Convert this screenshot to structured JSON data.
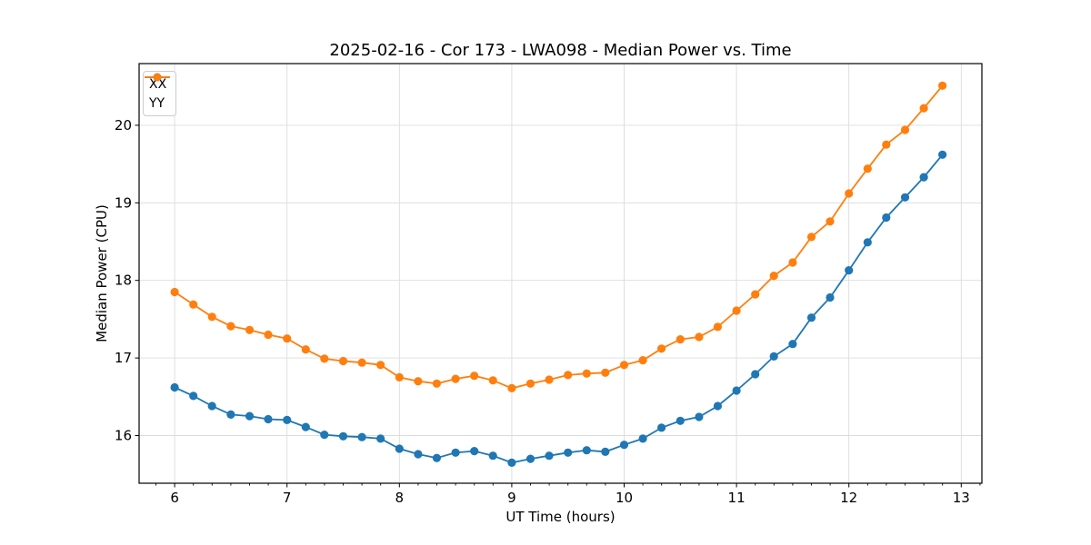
{
  "chart_data": {
    "type": "line",
    "title": "2025-02-16 - Cor 173 - LWA098 - Median Power vs. Time",
    "xlabel": "UT Time (hours)",
    "ylabel": "Median Power (CPU)",
    "xlim": [
      5.684,
      13.184
    ],
    "ylim": [
      15.385,
      20.795
    ],
    "xticks": [
      6,
      7,
      8,
      9,
      10,
      11,
      12,
      13
    ],
    "yticks": [
      16,
      17,
      18,
      19,
      20
    ],
    "x_minor_ticks_per_hour": 6,
    "grid": true,
    "grid_color": "#dcdcdc",
    "legend_position": "upper-left",
    "x": [
      6.0,
      6.167,
      6.333,
      6.5,
      6.667,
      6.833,
      7.0,
      7.167,
      7.333,
      7.5,
      7.667,
      7.833,
      8.0,
      8.167,
      8.333,
      8.5,
      8.667,
      8.833,
      9.0,
      9.167,
      9.333,
      9.5,
      9.667,
      9.833,
      10.0,
      10.167,
      10.333,
      10.5,
      10.667,
      10.833,
      11.0,
      11.167,
      11.333,
      11.5,
      11.667,
      11.833,
      12.0,
      12.167,
      12.333,
      12.5,
      12.667,
      12.833
    ],
    "series": [
      {
        "name": "XX",
        "color": "#1f77b4",
        "values": [
          16.62,
          16.51,
          16.38,
          16.27,
          16.25,
          16.21,
          16.2,
          16.11,
          16.01,
          15.99,
          15.98,
          15.96,
          15.83,
          15.76,
          15.71,
          15.78,
          15.8,
          15.74,
          15.65,
          15.7,
          15.74,
          15.78,
          15.81,
          15.79,
          15.88,
          15.96,
          16.1,
          16.19,
          16.24,
          16.38,
          16.58,
          16.79,
          17.02,
          17.18,
          17.52,
          17.78,
          18.13,
          18.49,
          18.81,
          19.07,
          19.33,
          19.62
        ]
      },
      {
        "name": "YY",
        "color": "#ff7f0e",
        "values": [
          17.85,
          17.69,
          17.53,
          17.41,
          17.36,
          17.3,
          17.25,
          17.11,
          16.99,
          16.96,
          16.94,
          16.91,
          16.75,
          16.7,
          16.67,
          16.73,
          16.77,
          16.71,
          16.61,
          16.67,
          16.72,
          16.78,
          16.8,
          16.81,
          16.91,
          16.97,
          17.12,
          17.24,
          17.27,
          17.4,
          17.61,
          17.82,
          18.06,
          18.23,
          18.56,
          18.76,
          19.12,
          19.44,
          19.75,
          19.94,
          20.22,
          20.51
        ]
      }
    ]
  }
}
